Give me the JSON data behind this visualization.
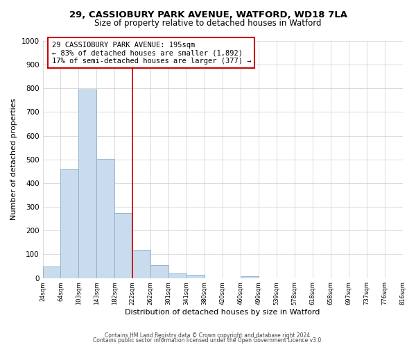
{
  "title": "29, CASSIOBURY PARK AVENUE, WATFORD, WD18 7LA",
  "subtitle": "Size of property relative to detached houses in Watford",
  "xlabel": "Distribution of detached houses by size in Watford",
  "ylabel": "Number of detached properties",
  "bin_labels": [
    "24sqm",
    "64sqm",
    "103sqm",
    "143sqm",
    "182sqm",
    "222sqm",
    "262sqm",
    "301sqm",
    "341sqm",
    "380sqm",
    "420sqm",
    "460sqm",
    "499sqm",
    "539sqm",
    "578sqm",
    "618sqm",
    "658sqm",
    "697sqm",
    "737sqm",
    "776sqm",
    "816sqm"
  ],
  "bar_values": [
    49,
    458,
    795,
    503,
    273,
    120,
    54,
    20,
    12,
    0,
    0,
    8,
    0,
    0,
    0,
    0,
    0,
    0,
    0,
    0
  ],
  "bar_color": "#c9dcee",
  "bar_edge_color": "#8aaec8",
  "vline_x_index": 4.5,
  "vline_color": "#cc0000",
  "ylim": [
    0,
    1000
  ],
  "yticks": [
    0,
    100,
    200,
    300,
    400,
    500,
    600,
    700,
    800,
    900,
    1000
  ],
  "annotation_title": "29 CASSIOBURY PARK AVENUE: 195sqm",
  "annotation_line1": "← 83% of detached houses are smaller (1,892)",
  "annotation_line2": "17% of semi-detached houses are larger (377) →",
  "annotation_box_color": "#ffffff",
  "annotation_box_edge": "#cc0000",
  "footer1": "Contains HM Land Registry data © Crown copyright and database right 2024.",
  "footer2": "Contains public sector information licensed under the Open Government Licence v3.0.",
  "bg_color": "#ffffff",
  "grid_color": "#cccccc"
}
